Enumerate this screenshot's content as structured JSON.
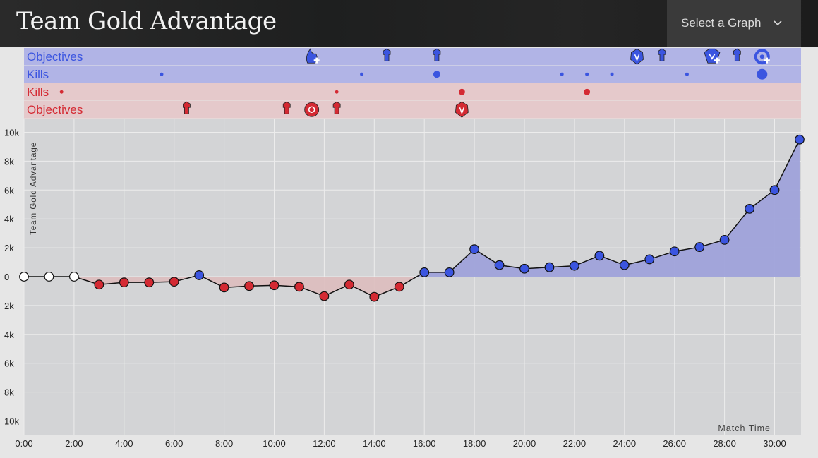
{
  "header": {
    "title": "Team Gold Advantage",
    "select_label": "Select a Graph",
    "select_icon": "chevron-down-icon"
  },
  "colors": {
    "blue": "#3b55e0",
    "blue_band": "#b1b4e6",
    "blue_fill": "#9fa2da",
    "red": "#d42a33",
    "red_band": "#e5c9cb",
    "red_fill": "#ddbcbe",
    "plot_bg": "#d3d4d6",
    "neutral": "#ffffff"
  },
  "bands": [
    {
      "label": "Objectives",
      "team": "blue",
      "kind": "objectives"
    },
    {
      "label": "Kills",
      "team": "blue",
      "kind": "kills"
    },
    {
      "label": "Kills",
      "team": "red",
      "kind": "kills"
    },
    {
      "label": "Objectives",
      "team": "red",
      "kind": "objectives"
    }
  ],
  "events": {
    "blue_objectives": [
      {
        "t": 11.5,
        "icon": "infernal-drake-icon",
        "plus": true
      },
      {
        "t": 14.5,
        "icon": "tower-icon"
      },
      {
        "t": 16.5,
        "icon": "tower-icon"
      },
      {
        "t": 24.5,
        "icon": "inhibitor-icon"
      },
      {
        "t": 25.5,
        "icon": "tower-icon"
      },
      {
        "t": 27.5,
        "icon": "baron-icon",
        "plus": true
      },
      {
        "t": 28.5,
        "icon": "tower-icon"
      },
      {
        "t": 29.5,
        "icon": "elder-drake-icon",
        "plus": true
      }
    ],
    "blue_kills": [
      {
        "t": 5.5,
        "count": 1
      },
      {
        "t": 13.5,
        "count": 1
      },
      {
        "t": 16.5,
        "count": 3
      },
      {
        "t": 21.5,
        "count": 1
      },
      {
        "t": 22.5,
        "count": 1
      },
      {
        "t": 23.5,
        "count": 1
      },
      {
        "t": 26.5,
        "count": 1
      },
      {
        "t": 29.5,
        "count": 4
      }
    ],
    "red_kills": [
      {
        "t": 1.5,
        "count": 1
      },
      {
        "t": 12.5,
        "count": 1
      },
      {
        "t": 17.5,
        "count": 2
      },
      {
        "t": 22.5,
        "count": 2
      }
    ],
    "red_objectives": [
      {
        "t": 6.5,
        "icon": "tower-icon"
      },
      {
        "t": 10.5,
        "icon": "tower-icon"
      },
      {
        "t": 11.5,
        "icon": "rift-herald-icon"
      },
      {
        "t": 12.5,
        "icon": "tower-icon"
      },
      {
        "t": 17.5,
        "icon": "inhibitor-icon"
      }
    ]
  },
  "chart_data": {
    "type": "area",
    "title": "Team Gold Advantage",
    "ylabel": "Team Gold Advantage",
    "xlabel": "Match Time",
    "x_unit": "minutes",
    "x": [
      0,
      1,
      2,
      3,
      4,
      5,
      6,
      7,
      8,
      9,
      10,
      11,
      12,
      13,
      14,
      15,
      16,
      17,
      18,
      19,
      20,
      21,
      22,
      23,
      24,
      25,
      26,
      27,
      28,
      29,
      30,
      31
    ],
    "values": [
      0,
      0,
      0,
      -550,
      -400,
      -400,
      -350,
      100,
      -750,
      -650,
      -600,
      -700,
      -1350,
      -550,
      -1400,
      -700,
      300,
      300,
      1900,
      800,
      550,
      650,
      750,
      1450,
      800,
      1200,
      1750,
      2050,
      2550,
      4700,
      6000,
      9500
    ],
    "ylim": [
      -10500,
      10000
    ],
    "y_ticks": [
      "10k",
      "8k",
      "6k",
      "4k",
      "2k",
      "0",
      "2k",
      "4k",
      "6k",
      "8k",
      "10k"
    ],
    "x_ticks": [
      "0:00",
      "2:00",
      "4:00",
      "6:00",
      "8:00",
      "10:00",
      "12:00",
      "14:00",
      "16:00",
      "18:00",
      "20:00",
      "22:00",
      "24:00",
      "26:00",
      "28:00",
      "30:00"
    ],
    "grid": true
  }
}
